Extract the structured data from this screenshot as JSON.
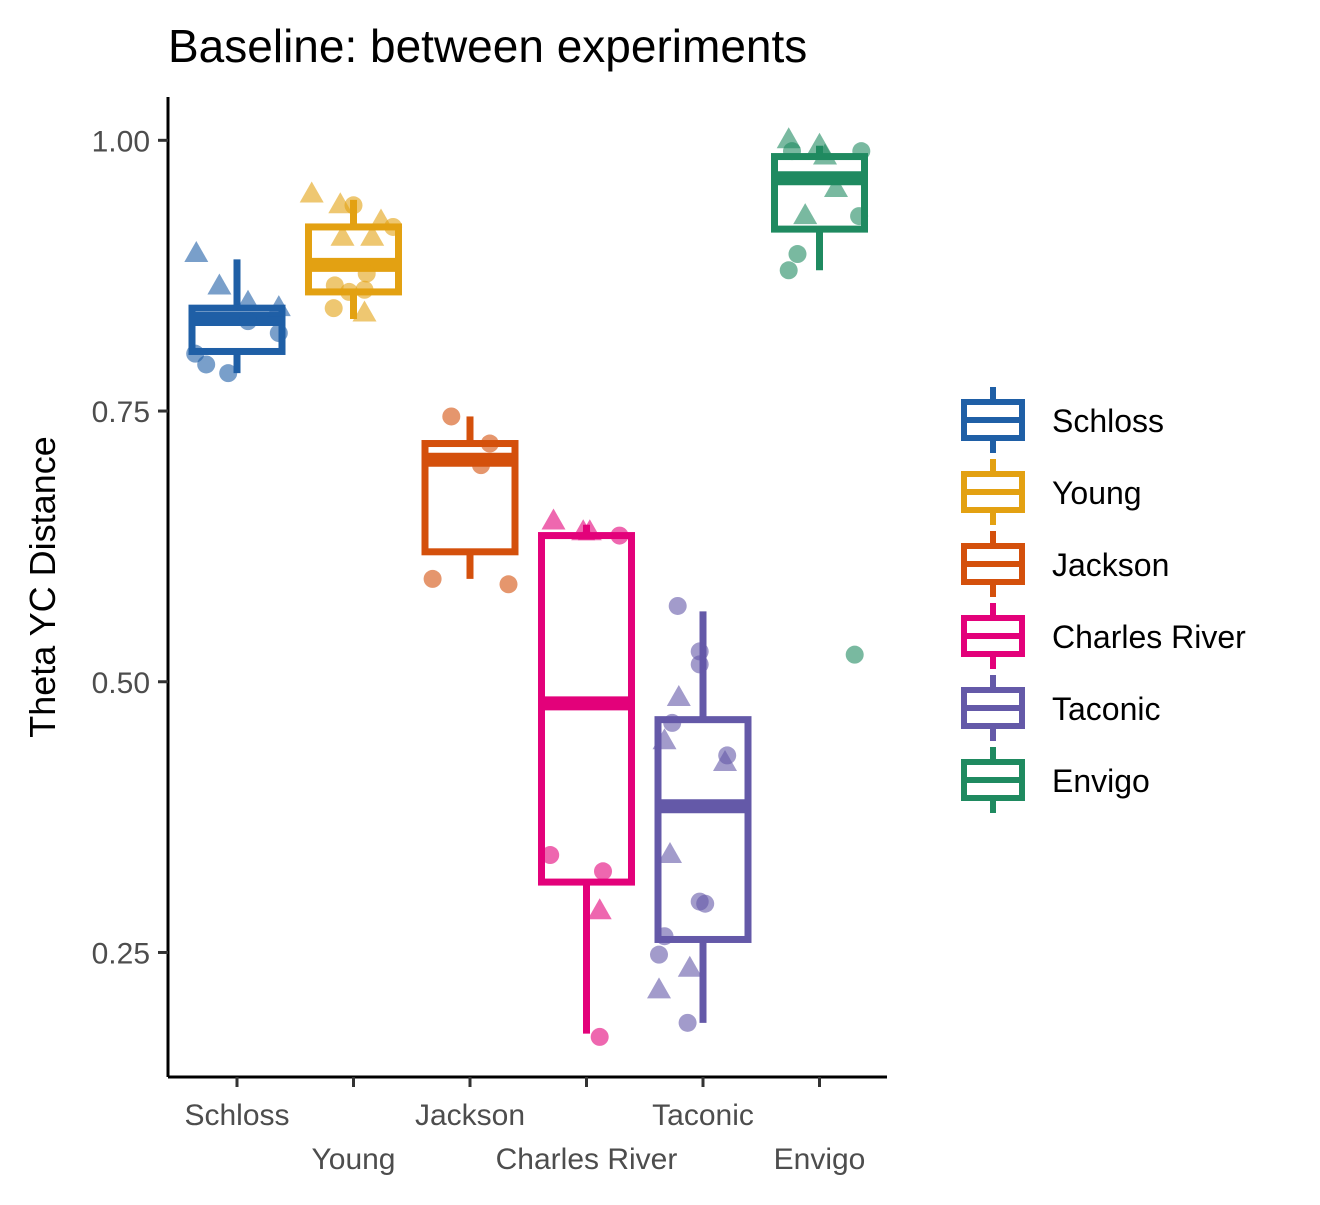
{
  "chart_data": {
    "type": "box",
    "title": "Baseline: between experiments",
    "xlabel": "",
    "ylabel": "Theta YC Distance",
    "ylim": [
      0.135,
      1.04
    ],
    "yticks": [
      0.25,
      0.5,
      0.75,
      1.0
    ],
    "ytick_labels": [
      "0.25",
      "0.50",
      "0.75",
      "1.00"
    ],
    "categories": [
      "Schloss",
      "Young",
      "Jackson",
      "Charles River",
      "Taconic",
      "Envigo"
    ],
    "grid": false,
    "legend": {
      "position": "right"
    },
    "series": [
      {
        "name": "Schloss",
        "color": "#1F5FA6",
        "box": {
          "whisker_low": 0.785,
          "q1": 0.805,
          "median": 0.835,
          "q3": 0.845,
          "whisker_high": 0.89
        },
        "points": [
          {
            "x": -0.37,
            "y": 0.895,
            "shape": "triangle"
          },
          {
            "x": -0.16,
            "y": 0.865,
            "shape": "triangle"
          },
          {
            "x": 0.1,
            "y": 0.85,
            "shape": "triangle"
          },
          {
            "x": 0.38,
            "y": 0.845,
            "shape": "triangle"
          },
          {
            "x": -0.38,
            "y": 0.803,
            "shape": "circle"
          },
          {
            "x": -0.28,
            "y": 0.793,
            "shape": "circle"
          },
          {
            "x": -0.08,
            "y": 0.785,
            "shape": "circle"
          },
          {
            "x": 0.1,
            "y": 0.833,
            "shape": "circle"
          },
          {
            "x": 0.38,
            "y": 0.822,
            "shape": "circle"
          }
        ]
      },
      {
        "name": "Young",
        "color": "#E3A112",
        "box": {
          "whisker_low": 0.835,
          "q1": 0.86,
          "median": 0.885,
          "q3": 0.92,
          "whisker_high": 0.945
        },
        "points": [
          {
            "x": -0.38,
            "y": 0.95,
            "shape": "triangle"
          },
          {
            "x": -0.12,
            "y": 0.94,
            "shape": "triangle"
          },
          {
            "x": -0.1,
            "y": 0.91,
            "shape": "triangle"
          },
          {
            "x": 0.17,
            "y": 0.91,
            "shape": "triangle"
          },
          {
            "x": 0.25,
            "y": 0.925,
            "shape": "triangle"
          },
          {
            "x": 0.1,
            "y": 0.84,
            "shape": "triangle"
          },
          {
            "x": 0.0,
            "y": 0.94,
            "shape": "circle"
          },
          {
            "x": -0.17,
            "y": 0.866,
            "shape": "circle"
          },
          {
            "x": -0.18,
            "y": 0.845,
            "shape": "circle"
          },
          {
            "x": -0.04,
            "y": 0.86,
            "shape": "circle"
          },
          {
            "x": 0.1,
            "y": 0.862,
            "shape": "circle"
          },
          {
            "x": 0.12,
            "y": 0.877,
            "shape": "circle"
          },
          {
            "x": 0.36,
            "y": 0.92,
            "shape": "circle"
          }
        ]
      },
      {
        "name": "Jackson",
        "color": "#D4500C",
        "box": {
          "whisker_low": 0.595,
          "q1": 0.62,
          "median": 0.705,
          "q3": 0.72,
          "whisker_high": 0.745
        },
        "points": [
          {
            "x": -0.17,
            "y": 0.745,
            "shape": "circle"
          },
          {
            "x": 0.18,
            "y": 0.72,
            "shape": "circle"
          },
          {
            "x": 0.1,
            "y": 0.7,
            "shape": "circle"
          },
          {
            "x": -0.34,
            "y": 0.595,
            "shape": "circle"
          },
          {
            "x": 0.35,
            "y": 0.59,
            "shape": "circle"
          }
        ]
      },
      {
        "name": "Charles River",
        "color": "#E3017A",
        "box": {
          "whisker_low": 0.175,
          "q1": 0.315,
          "median": 0.48,
          "q3": 0.635,
          "whisker_high": 0.645
        },
        "points": [
          {
            "x": -0.3,
            "y": 0.648,
            "shape": "triangle"
          },
          {
            "x": -0.03,
            "y": 0.638,
            "shape": "triangle"
          },
          {
            "x": 0.03,
            "y": 0.638,
            "shape": "triangle"
          },
          {
            "x": 0.12,
            "y": 0.288,
            "shape": "triangle"
          },
          {
            "x": 0.3,
            "y": 0.635,
            "shape": "circle"
          },
          {
            "x": -0.33,
            "y": 0.34,
            "shape": "circle"
          },
          {
            "x": 0.15,
            "y": 0.325,
            "shape": "circle"
          },
          {
            "x": 0.12,
            "y": 0.172,
            "shape": "circle"
          }
        ]
      },
      {
        "name": "Taconic",
        "color": "#6459A8",
        "box": {
          "whisker_low": 0.185,
          "q1": 0.262,
          "median": 0.385,
          "q3": 0.465,
          "whisker_high": 0.565
        },
        "points": [
          {
            "x": -0.22,
            "y": 0.485,
            "shape": "triangle"
          },
          {
            "x": -0.35,
            "y": 0.445,
            "shape": "triangle"
          },
          {
            "x": 0.2,
            "y": 0.425,
            "shape": "triangle"
          },
          {
            "x": -0.3,
            "y": 0.34,
            "shape": "triangle"
          },
          {
            "x": -0.12,
            "y": 0.235,
            "shape": "triangle"
          },
          {
            "x": -0.4,
            "y": 0.215,
            "shape": "triangle"
          },
          {
            "x": -0.23,
            "y": 0.57,
            "shape": "circle"
          },
          {
            "x": -0.03,
            "y": 0.528,
            "shape": "circle"
          },
          {
            "x": -0.03,
            "y": 0.516,
            "shape": "circle"
          },
          {
            "x": -0.28,
            "y": 0.462,
            "shape": "circle"
          },
          {
            "x": 0.22,
            "y": 0.432,
            "shape": "circle"
          },
          {
            "x": -0.03,
            "y": 0.297,
            "shape": "circle"
          },
          {
            "x": 0.02,
            "y": 0.295,
            "shape": "circle"
          },
          {
            "x": -0.35,
            "y": 0.265,
            "shape": "circle"
          },
          {
            "x": -0.4,
            "y": 0.248,
            "shape": "circle"
          },
          {
            "x": -0.14,
            "y": 0.185,
            "shape": "circle"
          }
        ]
      },
      {
        "name": "Envigo",
        "color": "#1F8A60",
        "box": {
          "whisker_low": 0.88,
          "q1": 0.918,
          "median": 0.965,
          "q3": 0.985,
          "whisker_high": 0.995
        },
        "points": [
          {
            "x": -0.28,
            "y": 1.0,
            "shape": "triangle"
          },
          {
            "x": 0.0,
            "y": 0.995,
            "shape": "triangle"
          },
          {
            "x": -0.13,
            "y": 0.93,
            "shape": "triangle"
          },
          {
            "x": 0.15,
            "y": 0.955,
            "shape": "triangle"
          },
          {
            "x": 0.05,
            "y": 0.985,
            "shape": "triangle"
          },
          {
            "x": -0.25,
            "y": 0.99,
            "shape": "circle"
          },
          {
            "x": 0.38,
            "y": 0.99,
            "shape": "circle"
          },
          {
            "x": 0.36,
            "y": 0.93,
            "shape": "circle"
          },
          {
            "x": -0.2,
            "y": 0.895,
            "shape": "circle"
          },
          {
            "x": -0.28,
            "y": 0.88,
            "shape": "circle"
          },
          {
            "x": 0.32,
            "y": 0.525,
            "shape": "circle"
          }
        ]
      }
    ]
  }
}
